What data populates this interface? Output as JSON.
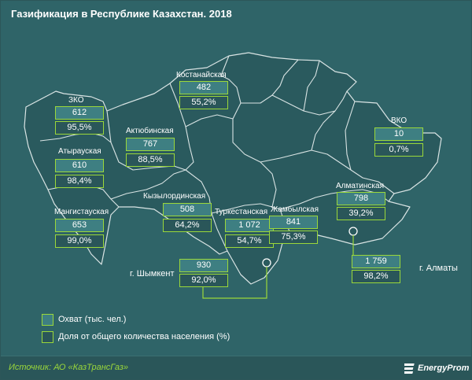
{
  "title": "Газификация в Республике Казахстан. 2018",
  "regions": [
    {
      "key": "zko",
      "name": "ЗКО",
      "coverage": "612",
      "share": "95,5%"
    },
    {
      "key": "atyrau",
      "name": "Атырауская",
      "coverage": "610",
      "share": "98,4%"
    },
    {
      "key": "mangistau",
      "name": "Мангистауская",
      "coverage": "653",
      "share": "99,0%"
    },
    {
      "key": "aktobe",
      "name": "Актюбинская",
      "coverage": "767",
      "share": "88,5%"
    },
    {
      "key": "kostanay",
      "name": "Костанайская",
      "coverage": "482",
      "share": "55,2%"
    },
    {
      "key": "kyzylorda",
      "name": "Кызылординская",
      "coverage": "508",
      "share": "64,2%"
    },
    {
      "key": "turkestan",
      "name": "Туркестанская",
      "coverage": "1 072",
      "share": "54,7%"
    },
    {
      "key": "zhambyl",
      "name": "Жамбылская",
      "coverage": "841",
      "share": "75,3%"
    },
    {
      "key": "almaty_reg",
      "name": "Алматинская",
      "coverage": "798",
      "share": "39,2%"
    },
    {
      "key": "vko",
      "name": "ВКО",
      "coverage": "10",
      "share": "0,7%"
    }
  ],
  "cities": {
    "shymkent": {
      "name": "г. Шымкент",
      "coverage": "930",
      "share": "92,0%"
    },
    "almaty": {
      "name": "г. Алматы",
      "coverage": "1 759",
      "share": "98,2%"
    }
  },
  "legend": {
    "coverage_label": "Охват (тыс. чел.)",
    "share_label": "Доля от общего количества населения (%)"
  },
  "source": "Источник: АО «КазТрансГаз»",
  "brand": "EnergyProm",
  "colors": {
    "background": "#2f6468",
    "region_fill": "#2a5a5e",
    "border": "#d9e4e4",
    "accent": "#9bd83a"
  }
}
